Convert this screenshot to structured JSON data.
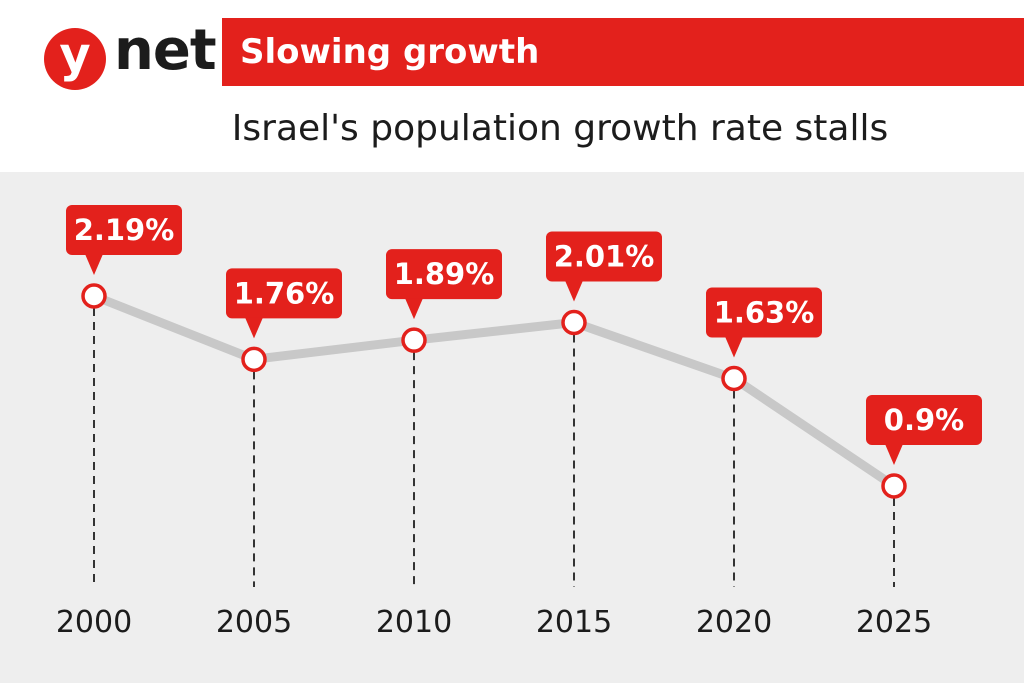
{
  "brand": {
    "logo_letter": "y",
    "logo_word": "net"
  },
  "banner": {
    "title": "Slowing growth"
  },
  "subtitle": "Israel's population growth rate stalls",
  "colors": {
    "accent": "#e3211c",
    "line": "#c8c8c8",
    "background": "#eeeeee",
    "text": "#1c1c1c"
  },
  "chart_data": {
    "type": "line",
    "title": "Israel's population growth rate stalls",
    "xlabel": "",
    "ylabel": "",
    "x": [
      "2000",
      "2005",
      "2010",
      "2015",
      "2020",
      "2025"
    ],
    "values": [
      2.19,
      1.76,
      1.89,
      2.01,
      1.63,
      0.9
    ],
    "labels": [
      "2.19%",
      "1.76%",
      "1.89%",
      "2.01%",
      "1.63%",
      "0.9%"
    ],
    "ylim": [
      0.9,
      2.19
    ],
    "grid": false,
    "legend": "none"
  }
}
